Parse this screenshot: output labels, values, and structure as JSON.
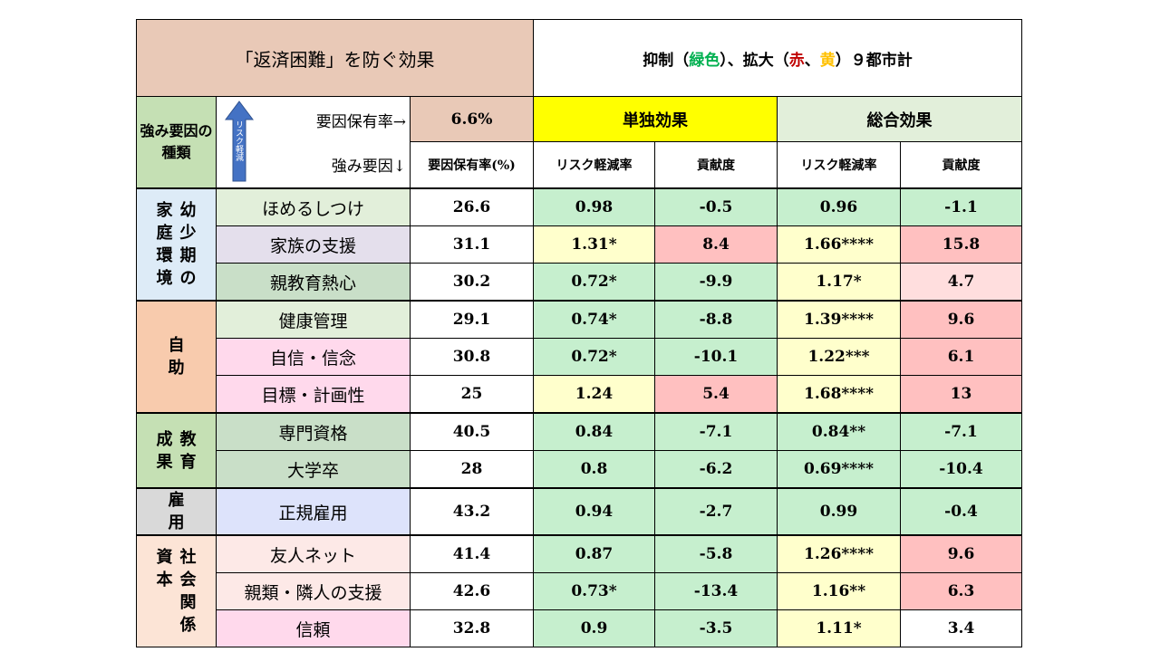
{
  "header": {
    "title": "「返済困難」を防ぐ効果",
    "subtitle_parts": [
      "抑制（",
      "緑色",
      "）、拡大（",
      "赤",
      "、",
      "黄",
      "）９都市計"
    ]
  },
  "labels": {
    "kind": "強み要因の種類",
    "arrow_text": "リスク軽減",
    "rate_label": "要因保有率→",
    "rate_value": "6.6%",
    "factor_label": "強み要因↓",
    "single_effect": "単独効果",
    "total_effect": "総合効果",
    "col_rate": "要因保有率(%)",
    "col_risk_single": "リスク軽減率",
    "col_contrib_single": "貢献度",
    "col_risk_total": "リスク軽減率",
    "col_contrib_total": "貢献度"
  },
  "categories": [
    {
      "columns": [
        "幼少期の",
        "家庭環境"
      ],
      "color": "#ddebf7"
    },
    {
      "columns": [
        "自助"
      ],
      "color": "#f8cbad"
    },
    {
      "columns": [
        "教育",
        "成果"
      ],
      "color": "#c5e0b4"
    },
    {
      "columns": [
        "雇用"
      ],
      "color": "#d9d9d9"
    },
    {
      "columns": [
        "社会関係",
        "資本"
      ],
      "color": "#fce4d6"
    }
  ],
  "rows": [
    {
      "factor": "ほめるしつけ",
      "factor_bg": "#e2efda",
      "rate": "26.6",
      "s_risk": "0.98",
      "s_risk_bg": "g",
      "s_con": "-0.5",
      "s_con_bg": "g",
      "t_risk": "0.96",
      "t_risk_bg": "g",
      "t_con": "-1.1",
      "t_con_bg": "g"
    },
    {
      "factor": "家族の支援",
      "factor_bg": "#e4dfec",
      "rate": "31.1",
      "s_risk": "1.31*",
      "s_risk_bg": "y",
      "s_con": "8.4",
      "s_con_bg": "r",
      "t_risk": "1.66****",
      "t_risk_bg": "y",
      "t_con": "15.8",
      "t_con_bg": "r"
    },
    {
      "factor": "親教育熱心",
      "factor_bg": "#c9dfc8",
      "rate": "30.2",
      "s_risk": "0.72*",
      "s_risk_bg": "g",
      "s_con": "-9.9",
      "s_con_bg": "g",
      "t_risk": "1.17*",
      "t_risk_bg": "y",
      "t_con": "4.7",
      "t_con_bg": "lr"
    },
    {
      "factor": "健康管理",
      "factor_bg": "#e2efda",
      "rate": "29.1",
      "s_risk": "0.74*",
      "s_risk_bg": "g",
      "s_con": "-8.8",
      "s_con_bg": "g",
      "t_risk": "1.39****",
      "t_risk_bg": "y",
      "t_con": "9.6",
      "t_con_bg": "r"
    },
    {
      "factor": "自信・信念",
      "factor_bg": "#ffd9ec",
      "rate": "30.8",
      "s_risk": "0.72*",
      "s_risk_bg": "g",
      "s_con": "-10.1",
      "s_con_bg": "g",
      "t_risk": "1.22***",
      "t_risk_bg": "y",
      "t_con": "6.1",
      "t_con_bg": "r"
    },
    {
      "factor": "目標・計画性",
      "factor_bg": "#ffd9ec",
      "rate": "25",
      "s_risk": "1.24",
      "s_risk_bg": "y",
      "s_con": "5.4",
      "s_con_bg": "r",
      "t_risk": "1.68****",
      "t_risk_bg": "y",
      "t_con": "13",
      "t_con_bg": "r"
    },
    {
      "factor": "専門資格",
      "factor_bg": "#c9dfc8",
      "rate": "40.5",
      "s_risk": "0.84",
      "s_risk_bg": "g",
      "s_con": "-7.1",
      "s_con_bg": "g",
      "t_risk": "0.84**",
      "t_risk_bg": "g",
      "t_con": "-7.1",
      "t_con_bg": "g"
    },
    {
      "factor": "大学卒",
      "factor_bg": "#c9dfc8",
      "rate": "28",
      "s_risk": "0.8",
      "s_risk_bg": "g",
      "s_con": "-6.2",
      "s_con_bg": "g",
      "t_risk": "0.69****",
      "t_risk_bg": "g",
      "t_con": "-10.4",
      "t_con_bg": "g"
    },
    {
      "factor": "正規雇用",
      "factor_bg": "#dde3fb",
      "rate": "43.2",
      "s_risk": "0.94",
      "s_risk_bg": "g",
      "s_con": "-2.7",
      "s_con_bg": "g",
      "t_risk": "0.99",
      "t_risk_bg": "g",
      "t_con": "-0.4",
      "t_con_bg": "g"
    },
    {
      "factor": "友人ネット",
      "factor_bg": "#fde9e7",
      "rate": "41.4",
      "s_risk": "0.87",
      "s_risk_bg": "g",
      "s_con": "-5.8",
      "s_con_bg": "g",
      "t_risk": "1.26****",
      "t_risk_bg": "y",
      "t_con": "9.6",
      "t_con_bg": "r"
    },
    {
      "factor": "親類・隣人の支援",
      "factor_bg": "#fde9e7",
      "rate": "42.6",
      "s_risk": "0.73*",
      "s_risk_bg": "g",
      "s_con": "-13.4",
      "s_con_bg": "g",
      "t_risk": "1.16**",
      "t_risk_bg": "y",
      "t_con": "6.3",
      "t_con_bg": "r"
    },
    {
      "factor": "信頼",
      "factor_bg": "#ffd9ec",
      "rate": "32.8",
      "s_risk": "0.9",
      "s_risk_bg": "g",
      "s_con": "-3.5",
      "s_con_bg": "g",
      "t_risk": "1.11*",
      "t_risk_bg": "y",
      "t_con": "3.4",
      "t_con_bg": "w"
    }
  ]
}
